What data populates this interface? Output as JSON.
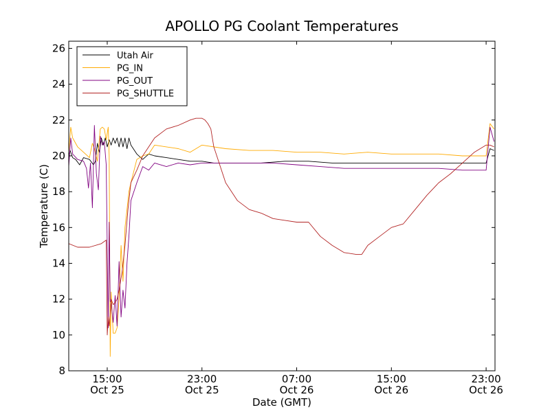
{
  "chart_data": {
    "type": "line",
    "title": "APOLLO PG Coolant Temperatures",
    "xlabel": "Date (GMT)",
    "ylabel": "Temperature (C)",
    "x_unit": "datetime (GMT)",
    "xlim": [
      "Oct 25 11:45",
      "Oct 26 23:45"
    ],
    "ylim": [
      8,
      26.4
    ],
    "y_ticks": [
      8,
      10,
      12,
      14,
      16,
      18,
      20,
      22,
      24,
      26
    ],
    "x_ticks": [
      {
        "t": "Oct 25 15:00",
        "time": "15:00",
        "date": "Oct 25"
      },
      {
        "t": "Oct 25 23:00",
        "time": "23:00",
        "date": "Oct 25"
      },
      {
        "t": "Oct 26 07:00",
        "time": "07:00",
        "date": "Oct 26"
      },
      {
        "t": "Oct 26 15:00",
        "time": "15:00",
        "date": "Oct 26"
      },
      {
        "t": "Oct 26 23:00",
        "time": "23:00",
        "date": "Oct 26"
      }
    ],
    "grid": false,
    "legend_position": "top-left",
    "series": [
      {
        "name": "Utah Air",
        "color": "#000000",
        "x": [
          "Oct 25 11:45",
          "Oct 25 11:52",
          "Oct 25 12:05",
          "Oct 25 12:20",
          "Oct 25 12:40",
          "Oct 25 13:00",
          "Oct 25 13:30",
          "Oct 25 13:50",
          "Oct 25 14:00",
          "Oct 25 14:10",
          "Oct 25 14:20",
          "Oct 25 14:30",
          "Oct 25 14:40",
          "Oct 25 14:50",
          "Oct 25 15:00",
          "Oct 25 15:10",
          "Oct 25 15:20",
          "Oct 25 15:30",
          "Oct 25 15:40",
          "Oct 25 15:50",
          "Oct 25 16:00",
          "Oct 25 16:10",
          "Oct 25 16:20",
          "Oct 25 16:30",
          "Oct 25 16:40",
          "Oct 25 16:50",
          "Oct 25 17:00",
          "Oct 25 17:30",
          "Oct 25 18:00",
          "Oct 25 18:30",
          "Oct 25 19:00",
          "Oct 25 20:00",
          "Oct 25 21:00",
          "Oct 25 22:00",
          "Oct 25 23:00",
          "Oct 26 00:00",
          "Oct 26 02:00",
          "Oct 26 04:00",
          "Oct 26 06:00",
          "Oct 26 08:00",
          "Oct 26 10:00",
          "Oct 26 12:00",
          "Oct 26 14:00",
          "Oct 26 16:00",
          "Oct 26 18:00",
          "Oct 26 20:00",
          "Oct 26 22:00",
          "Oct 26 23:00",
          "Oct 26 23:20",
          "Oct 26 23:40"
        ],
        "y": [
          20.0,
          20.3,
          19.9,
          19.8,
          19.5,
          19.9,
          19.8,
          19.5,
          19.7,
          20.7,
          20.2,
          21.0,
          20.6,
          21.0,
          20.5,
          20.9,
          20.6,
          21.0,
          20.7,
          21.0,
          20.5,
          21.0,
          20.5,
          21.0,
          20.4,
          21.0,
          20.6,
          20.1,
          19.8,
          20.1,
          20.0,
          19.9,
          19.8,
          19.7,
          19.7,
          19.6,
          19.6,
          19.6,
          19.7,
          19.7,
          19.6,
          19.6,
          19.6,
          19.6,
          19.6,
          19.6,
          19.6,
          19.6,
          20.4,
          20.3
        ]
      },
      {
        "name": "PG_IN",
        "color": "#ffaa00",
        "x": [
          "Oct 25 11:45",
          "Oct 25 11:55",
          "Oct 25 12:05",
          "Oct 25 12:30",
          "Oct 25 13:00",
          "Oct 25 13:30",
          "Oct 25 13:45",
          "Oct 25 13:55",
          "Oct 25 14:10",
          "Oct 25 14:25",
          "Oct 25 14:35",
          "Oct 25 14:45",
          "Oct 25 14:55",
          "Oct 25 15:05",
          "Oct 25 15:10",
          "Oct 25 15:15",
          "Oct 25 15:20",
          "Oct 25 15:30",
          "Oct 25 15:40",
          "Oct 25 15:50",
          "Oct 25 16:00",
          "Oct 25 16:10",
          "Oct 25 16:20",
          "Oct 25 16:30",
          "Oct 25 16:40",
          "Oct 25 16:50",
          "Oct 25 17:00",
          "Oct 25 17:30",
          "Oct 25 18:00",
          "Oct 25 18:30",
          "Oct 25 19:00",
          "Oct 25 20:00",
          "Oct 25 21:00",
          "Oct 25 22:00",
          "Oct 25 23:00",
          "Oct 26 01:00",
          "Oct 26 03:00",
          "Oct 26 05:00",
          "Oct 26 07:00",
          "Oct 26 09:00",
          "Oct 26 11:00",
          "Oct 26 13:00",
          "Oct 26 15:00",
          "Oct 26 17:00",
          "Oct 26 19:00",
          "Oct 26 21:00",
          "Oct 26 23:00",
          "Oct 26 23:20",
          "Oct 26 23:40"
        ],
        "y": [
          20.2,
          21.6,
          21.0,
          20.5,
          20.2,
          19.9,
          20.7,
          20.4,
          19.7,
          21.5,
          21.6,
          21.5,
          20.9,
          21.6,
          20.0,
          8.8,
          12.4,
          10.1,
          10.1,
          10.4,
          12.0,
          15.0,
          13.0,
          16.0,
          17.0,
          18.0,
          18.5,
          19.8,
          20.0,
          20.1,
          20.6,
          20.5,
          20.4,
          20.2,
          20.6,
          20.4,
          20.3,
          20.3,
          20.2,
          20.2,
          20.1,
          20.2,
          20.1,
          20.1,
          20.1,
          20.0,
          20.0,
          21.8,
          21.5
        ]
      },
      {
        "name": "PG_OUT",
        "color": "#800080",
        "x": [
          "Oct 25 11:45",
          "Oct 25 11:55",
          "Oct 25 12:05",
          "Oct 25 12:30",
          "Oct 25 13:00",
          "Oct 25 13:15",
          "Oct 25 13:25",
          "Oct 25 13:35",
          "Oct 25 13:45",
          "Oct 25 13:55",
          "Oct 25 14:05",
          "Oct 25 14:15",
          "Oct 25 14:25",
          "Oct 25 14:35",
          "Oct 25 14:45",
          "Oct 25 14:55",
          "Oct 25 15:05",
          "Oct 25 15:10",
          "Oct 25 15:15",
          "Oct 25 15:20",
          "Oct 25 15:30",
          "Oct 25 15:40",
          "Oct 25 15:50",
          "Oct 25 16:00",
          "Oct 25 16:10",
          "Oct 25 16:20",
          "Oct 25 16:30",
          "Oct 25 16:40",
          "Oct 25 16:50",
          "Oct 25 17:00",
          "Oct 25 17:30",
          "Oct 25 18:00",
          "Oct 25 18:30",
          "Oct 25 19:00",
          "Oct 25 20:00",
          "Oct 25 21:00",
          "Oct 25 22:00",
          "Oct 25 23:00",
          "Oct 26 01:00",
          "Oct 26 03:00",
          "Oct 26 05:00",
          "Oct 26 07:00",
          "Oct 26 09:00",
          "Oct 26 11:00",
          "Oct 26 13:00",
          "Oct 26 15:00",
          "Oct 26 17:00",
          "Oct 26 19:00",
          "Oct 26 21:00",
          "Oct 26 23:00",
          "Oct 26 23:20",
          "Oct 26 23:40"
        ],
        "y": [
          19.4,
          21.0,
          20.1,
          19.8,
          19.7,
          19.3,
          18.2,
          19.6,
          17.1,
          21.7,
          19.0,
          18.1,
          21.1,
          20.6,
          20.8,
          19.5,
          10.4,
          16.3,
          11.9,
          11.8,
          10.7,
          12.2,
          10.5,
          14.1,
          11.0,
          12.5,
          11.5,
          14.0,
          15.5,
          17.5,
          18.5,
          19.4,
          19.2,
          19.6,
          19.4,
          19.6,
          19.5,
          19.6,
          19.6,
          19.6,
          19.6,
          19.5,
          19.4,
          19.3,
          19.3,
          19.3,
          19.3,
          19.3,
          19.2,
          19.2,
          21.6,
          20.8
        ]
      },
      {
        "name": "PG_SHUTTLE",
        "color": "#b22222",
        "x": [
          "Oct 25 11:45",
          "Oct 25 12:30",
          "Oct 25 13:30",
          "Oct 25 14:30",
          "Oct 25 14:55",
          "Oct 25 15:00",
          "Oct 25 15:05",
          "Oct 25 15:10",
          "Oct 25 15:20",
          "Oct 25 15:30",
          "Oct 25 15:40",
          "Oct 25 15:50",
          "Oct 25 16:00",
          "Oct 25 16:15",
          "Oct 25 16:30",
          "Oct 25 16:45",
          "Oct 25 17:00",
          "Oct 25 17:30",
          "Oct 25 18:00",
          "Oct 25 19:00",
          "Oct 25 20:00",
          "Oct 25 21:00",
          "Oct 25 22:00",
          "Oct 25 22:30",
          "Oct 25 23:00",
          "Oct 25 23:15",
          "Oct 25 23:30",
          "Oct 25 23:45",
          "Oct 26 00:00",
          "Oct 26 00:30",
          "Oct 26 01:00",
          "Oct 26 02:00",
          "Oct 26 03:00",
          "Oct 26 04:00",
          "Oct 26 05:00",
          "Oct 26 06:00",
          "Oct 26 07:00",
          "Oct 26 08:00",
          "Oct 26 09:00",
          "Oct 26 10:00",
          "Oct 26 11:00",
          "Oct 26 12:00",
          "Oct 26 12:30",
          "Oct 26 13:00",
          "Oct 26 14:00",
          "Oct 26 15:00",
          "Oct 26 16:00",
          "Oct 26 17:00",
          "Oct 26 18:00",
          "Oct 26 19:00",
          "Oct 26 20:00",
          "Oct 26 21:00",
          "Oct 26 22:00",
          "Oct 26 23:00",
          "Oct 26 23:20",
          "Oct 26 23:40"
        ],
        "y": [
          15.1,
          14.9,
          14.9,
          15.1,
          15.3,
          10.0,
          11.0,
          10.5,
          12.0,
          11.7,
          11.8,
          12.0,
          12.5,
          13.5,
          15.0,
          17.0,
          18.5,
          19.2,
          20.0,
          21.0,
          21.5,
          21.7,
          22.0,
          22.1,
          22.1,
          22.0,
          21.8,
          21.5,
          20.5,
          19.5,
          18.5,
          17.5,
          17.0,
          16.8,
          16.5,
          16.4,
          16.3,
          16.3,
          15.5,
          15.0,
          14.6,
          14.5,
          14.5,
          15.0,
          15.5,
          16.0,
          16.2,
          17.0,
          17.8,
          18.5,
          19.0,
          19.6,
          20.2,
          20.6,
          20.6,
          20.5
        ]
      }
    ]
  }
}
